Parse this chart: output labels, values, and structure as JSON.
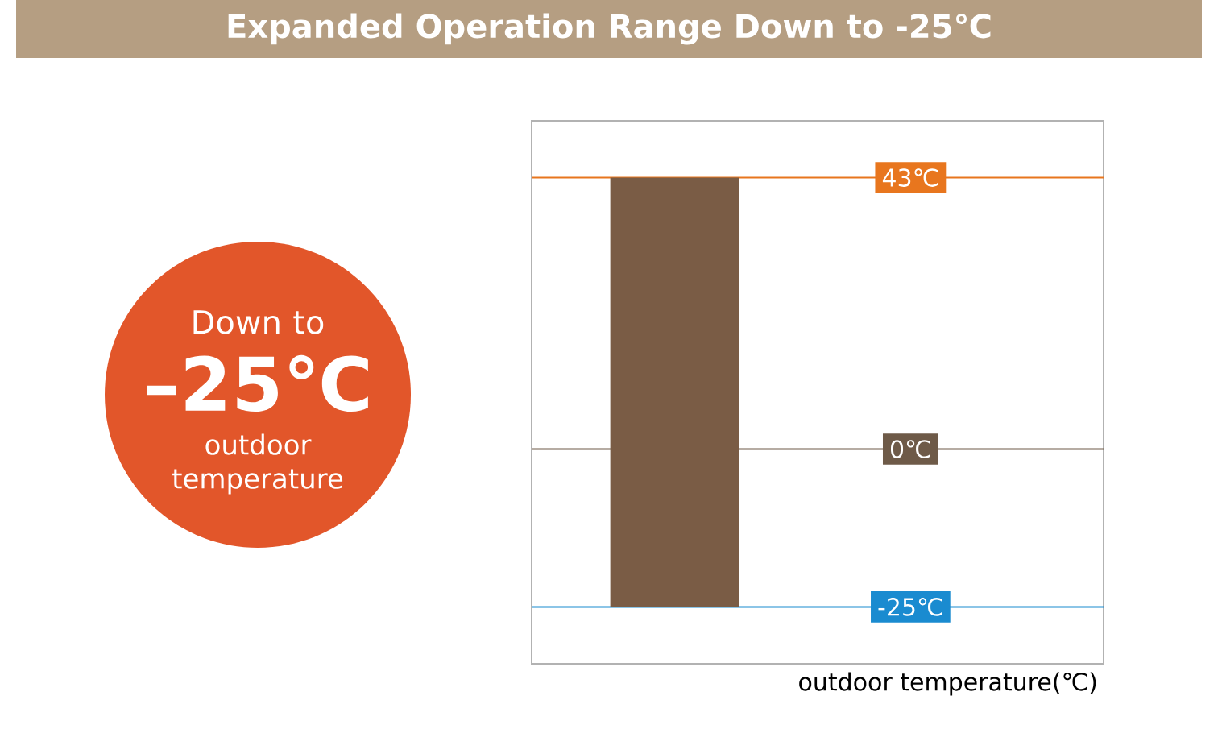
{
  "chart_data": {
    "type": "bar",
    "title": "Expanded  Operation Range Down to -25℃",
    "xlabel": "outdoor temperature(℃)",
    "categories": [
      null
    ],
    "base": [
      -25
    ],
    "values": [
      68
    ],
    "color": "#7a5c45",
    "ylim": [
      -34,
      52
    ],
    "tick_labels": false,
    "ref_lines": [
      {
        "axis": "y",
        "value": 43,
        "label": "43℃",
        "color": "#e8761e"
      },
      {
        "axis": "y",
        "value": 0,
        "label": "0℃",
        "color": "#6e5a48"
      },
      {
        "axis": "y",
        "value": -25,
        "label": "-25℃",
        "color": "#1a8bd0"
      }
    ],
    "annotations": [
      "Down to",
      "–25℃",
      "outdoor temperature"
    ]
  }
}
